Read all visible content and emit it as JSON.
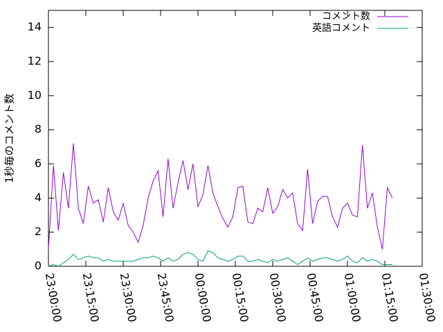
{
  "chart_data": {
    "type": "line",
    "ylabel": "1秒毎のコメント数",
    "x": [
      "23:00:00",
      "23:02:00",
      "23:04:00",
      "23:06:00",
      "23:08:00",
      "23:10:00",
      "23:12:00",
      "23:14:00",
      "23:16:00",
      "23:18:00",
      "23:20:00",
      "23:22:00",
      "23:24:00",
      "23:26:00",
      "23:28:00",
      "23:30:00",
      "23:32:00",
      "23:34:00",
      "23:36:00",
      "23:38:00",
      "23:40:00",
      "23:42:00",
      "23:44:00",
      "23:46:00",
      "23:48:00",
      "23:50:00",
      "23:52:00",
      "23:54:00",
      "23:56:00",
      "23:58:00",
      "00:00:00",
      "00:02:00",
      "00:04:00",
      "00:06:00",
      "00:08:00",
      "00:10:00",
      "00:12:00",
      "00:14:00",
      "00:16:00",
      "00:18:00",
      "00:20:00",
      "00:22:00",
      "00:24:00",
      "00:26:00",
      "00:28:00",
      "00:30:00",
      "00:32:00",
      "00:34:00",
      "00:36:00",
      "00:38:00",
      "00:40:00",
      "00:42:00",
      "00:44:00",
      "00:46:00",
      "00:48:00",
      "00:50:00",
      "00:52:00",
      "00:54:00",
      "00:56:00",
      "00:58:00",
      "01:00:00",
      "01:02:00",
      "01:04:00",
      "01:06:00",
      "01:08:00",
      "01:10:00",
      "01:12:00",
      "01:14:00",
      "01:16:00",
      "01:18:00"
    ],
    "series": [
      {
        "name": "コメント数",
        "color": "#9400d3",
        "values": [
          1.0,
          5.9,
          2.1,
          5.5,
          3.4,
          7.2,
          3.4,
          2.5,
          4.7,
          3.7,
          3.9,
          2.6,
          4.6,
          3.2,
          2.7,
          3.7,
          2.4,
          2.0,
          1.4,
          2.4,
          4.0,
          5.0,
          5.6,
          2.9,
          6.3,
          3.4,
          4.9,
          6.2,
          4.5,
          6.0,
          3.5,
          4.2,
          5.9,
          4.3,
          3.5,
          2.8,
          2.3,
          2.9,
          4.6,
          4.7,
          2.6,
          2.5,
          3.4,
          3.2,
          4.6,
          3.1,
          3.5,
          4.5,
          4.0,
          4.3,
          2.5,
          2.1,
          5.7,
          2.5,
          3.8,
          4.1,
          4.1,
          2.9,
          2.3,
          3.4,
          3.7,
          3.0,
          2.9,
          7.1,
          3.4,
          4.3,
          2.3,
          1.0,
          4.6,
          4.0
        ]
      },
      {
        "name": "英語コメント",
        "color": "#009e73",
        "values": [
          0.0,
          0.1,
          0.0,
          0.2,
          0.4,
          0.7,
          0.4,
          0.5,
          0.6,
          0.5,
          0.5,
          0.3,
          0.4,
          0.3,
          0.3,
          0.3,
          0.3,
          0.3,
          0.4,
          0.5,
          0.5,
          0.6,
          0.5,
          0.3,
          0.5,
          0.3,
          0.4,
          0.7,
          0.8,
          0.7,
          0.4,
          0.3,
          0.9,
          0.8,
          0.5,
          0.4,
          0.3,
          0.4,
          0.6,
          0.6,
          0.3,
          0.3,
          0.4,
          0.3,
          0.2,
          0.4,
          0.3,
          0.4,
          0.5,
          0.3,
          0.1,
          0.3,
          0.5,
          0.3,
          0.4,
          0.5,
          0.5,
          0.4,
          0.3,
          0.4,
          0.6,
          0.3,
          0.2,
          0.5,
          0.3,
          0.4,
          0.3,
          0.1,
          0.1,
          0.1
        ]
      }
    ],
    "xlim": [
      "23:00:00",
      "01:30:00"
    ],
    "xticks": [
      "23:00:00",
      "23:15:00",
      "23:30:00",
      "23:45:00",
      "00:00:00",
      "00:15:00",
      "00:30:00",
      "00:45:00",
      "01:00:00",
      "01:15:00",
      "01:30:00"
    ],
    "ylim": [
      0,
      15
    ],
    "yticks": [
      0,
      2,
      4,
      6,
      8,
      10,
      12,
      14
    ],
    "legend": "upper right"
  }
}
